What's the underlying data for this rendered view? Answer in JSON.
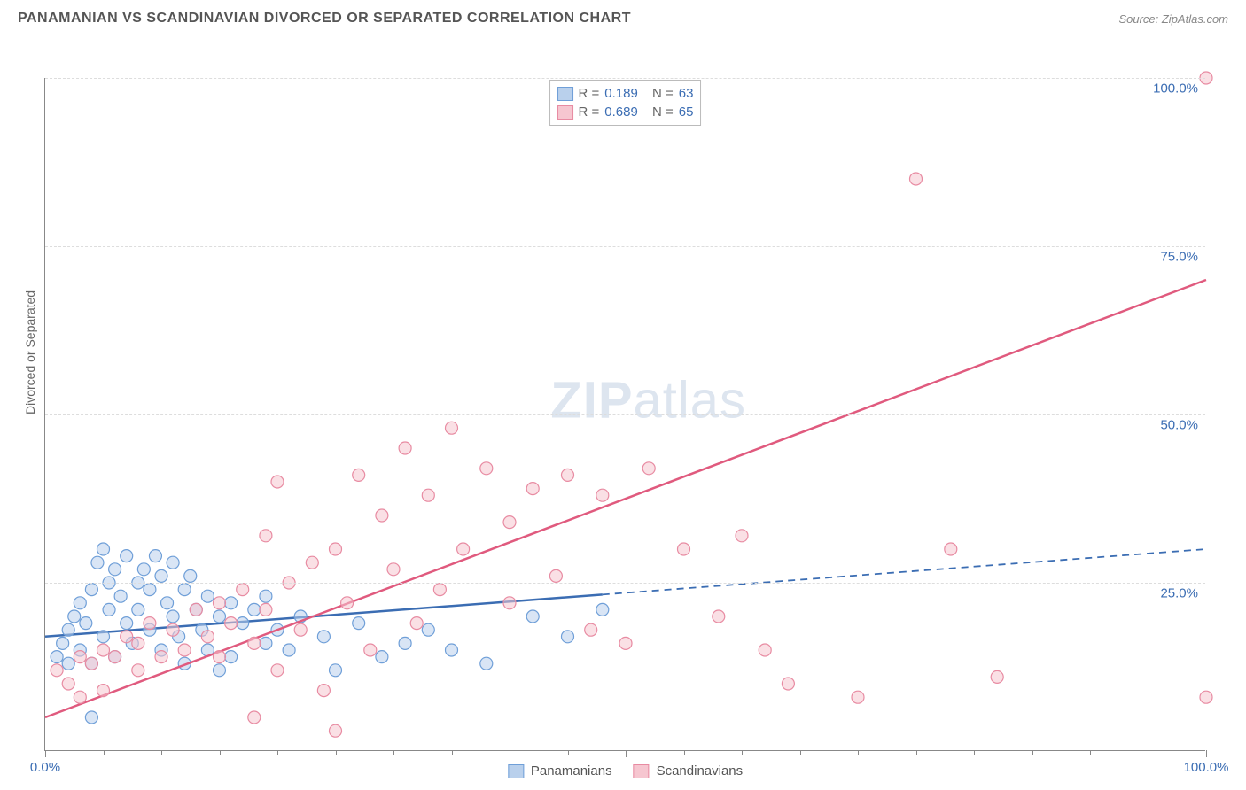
{
  "header": {
    "title": "PANAMANIAN VS SCANDINAVIAN DIVORCED OR SEPARATED CORRELATION CHART",
    "source": "Source: ZipAtlas.com"
  },
  "chart": {
    "type": "scatter",
    "ylabel": "Divorced or Separated",
    "xlim": [
      0,
      100
    ],
    "ylim": [
      0,
      100
    ],
    "xtick_positions": [
      0,
      50,
      100
    ],
    "xtick_labels": [
      "0.0%",
      "",
      "100.0%"
    ],
    "xtick_minor": [
      5,
      10,
      15,
      20,
      25,
      30,
      35,
      40,
      45,
      55,
      60,
      65,
      70,
      75,
      80,
      85,
      90,
      95
    ],
    "ytick_positions": [
      25,
      50,
      75,
      100
    ],
    "ytick_labels": [
      "25.0%",
      "50.0%",
      "75.0%",
      "100.0%"
    ],
    "grid_color": "#dddddd",
    "axis_color": "#888888",
    "background_color": "#ffffff",
    "label_color": "#3b6db3",
    "marker_radius": 7,
    "marker_stroke_width": 1.2,
    "watermark": "ZIPatlas",
    "series": [
      {
        "name": "Panamanians",
        "fill": "#b9d0ec",
        "stroke": "#6f9fd8",
        "line_color": "#3b6db3",
        "r_label": "R =",
        "r_value": "0.189",
        "n_label": "N =",
        "n_value": "63",
        "regression": {
          "x1": 0,
          "y1": 17,
          "x2": 100,
          "y2": 30,
          "solid_until_x": 48
        },
        "points": [
          [
            1,
            14
          ],
          [
            1.5,
            16
          ],
          [
            2,
            13
          ],
          [
            2,
            18
          ],
          [
            2.5,
            20
          ],
          [
            3,
            15
          ],
          [
            3,
            22
          ],
          [
            3.5,
            19
          ],
          [
            4,
            24
          ],
          [
            4,
            13
          ],
          [
            4.5,
            28
          ],
          [
            5,
            17
          ],
          [
            5,
            30
          ],
          [
            5.5,
            21
          ],
          [
            5.5,
            25
          ],
          [
            6,
            14
          ],
          [
            6,
            27
          ],
          [
            6.5,
            23
          ],
          [
            7,
            19
          ],
          [
            7,
            29
          ],
          [
            7.5,
            16
          ],
          [
            8,
            25
          ],
          [
            8,
            21
          ],
          [
            8.5,
            27
          ],
          [
            9,
            18
          ],
          [
            9,
            24
          ],
          [
            9.5,
            29
          ],
          [
            10,
            15
          ],
          [
            10,
            26
          ],
          [
            10.5,
            22
          ],
          [
            11,
            28
          ],
          [
            11,
            20
          ],
          [
            11.5,
            17
          ],
          [
            12,
            24
          ],
          [
            12,
            13
          ],
          [
            12.5,
            26
          ],
          [
            13,
            21
          ],
          [
            13.5,
            18
          ],
          [
            14,
            23
          ],
          [
            14,
            15
          ],
          [
            15,
            20
          ],
          [
            15,
            12
          ],
          [
            16,
            22
          ],
          [
            16,
            14
          ],
          [
            17,
            19
          ],
          [
            18,
            21
          ],
          [
            19,
            16
          ],
          [
            19,
            23
          ],
          [
            20,
            18
          ],
          [
            21,
            15
          ],
          [
            22,
            20
          ],
          [
            24,
            17
          ],
          [
            25,
            12
          ],
          [
            27,
            19
          ],
          [
            29,
            14
          ],
          [
            31,
            16
          ],
          [
            33,
            18
          ],
          [
            35,
            15
          ],
          [
            38,
            13
          ],
          [
            42,
            20
          ],
          [
            45,
            17
          ],
          [
            48,
            21
          ],
          [
            4,
            5
          ]
        ]
      },
      {
        "name": "Scandinavians",
        "fill": "#f6c6d0",
        "stroke": "#e88ba2",
        "line_color": "#e05a7e",
        "r_label": "R =",
        "r_value": "0.689",
        "n_label": "N =",
        "n_value": "65",
        "regression": {
          "x1": 0,
          "y1": 5,
          "x2": 100,
          "y2": 70,
          "solid_until_x": 100
        },
        "points": [
          [
            1,
            12
          ],
          [
            2,
            10
          ],
          [
            3,
            14
          ],
          [
            3,
            8
          ],
          [
            4,
            13
          ],
          [
            5,
            15
          ],
          [
            5,
            9
          ],
          [
            6,
            14
          ],
          [
            7,
            17
          ],
          [
            8,
            12
          ],
          [
            8,
            16
          ],
          [
            9,
            19
          ],
          [
            10,
            14
          ],
          [
            11,
            18
          ],
          [
            12,
            15
          ],
          [
            13,
            21
          ],
          [
            14,
            17
          ],
          [
            15,
            14
          ],
          [
            15,
            22
          ],
          [
            16,
            19
          ],
          [
            17,
            24
          ],
          [
            18,
            16
          ],
          [
            19,
            21
          ],
          [
            19,
            32
          ],
          [
            20,
            12
          ],
          [
            20,
            40
          ],
          [
            21,
            25
          ],
          [
            22,
            18
          ],
          [
            23,
            28
          ],
          [
            24,
            9
          ],
          [
            25,
            30
          ],
          [
            26,
            22
          ],
          [
            27,
            41
          ],
          [
            28,
            15
          ],
          [
            29,
            35
          ],
          [
            30,
            27
          ],
          [
            31,
            45
          ],
          [
            32,
            19
          ],
          [
            33,
            38
          ],
          [
            34,
            24
          ],
          [
            35,
            48
          ],
          [
            36,
            30
          ],
          [
            38,
            42
          ],
          [
            40,
            22
          ],
          [
            40,
            34
          ],
          [
            42,
            39
          ],
          [
            44,
            26
          ],
          [
            45,
            41
          ],
          [
            47,
            18
          ],
          [
            48,
            38
          ],
          [
            50,
            16
          ],
          [
            52,
            42
          ],
          [
            55,
            30
          ],
          [
            58,
            20
          ],
          [
            60,
            32
          ],
          [
            62,
            15
          ],
          [
            64,
            10
          ],
          [
            70,
            8
          ],
          [
            75,
            85
          ],
          [
            78,
            30
          ],
          [
            82,
            11
          ],
          [
            100,
            100
          ],
          [
            100,
            8
          ],
          [
            18,
            5
          ],
          [
            25,
            3
          ]
        ]
      }
    ],
    "legend_bottom": [
      {
        "label": "Panamanians",
        "fill": "#b9d0ec",
        "stroke": "#6f9fd8"
      },
      {
        "label": "Scandinavians",
        "fill": "#f6c6d0",
        "stroke": "#e88ba2"
      }
    ]
  }
}
